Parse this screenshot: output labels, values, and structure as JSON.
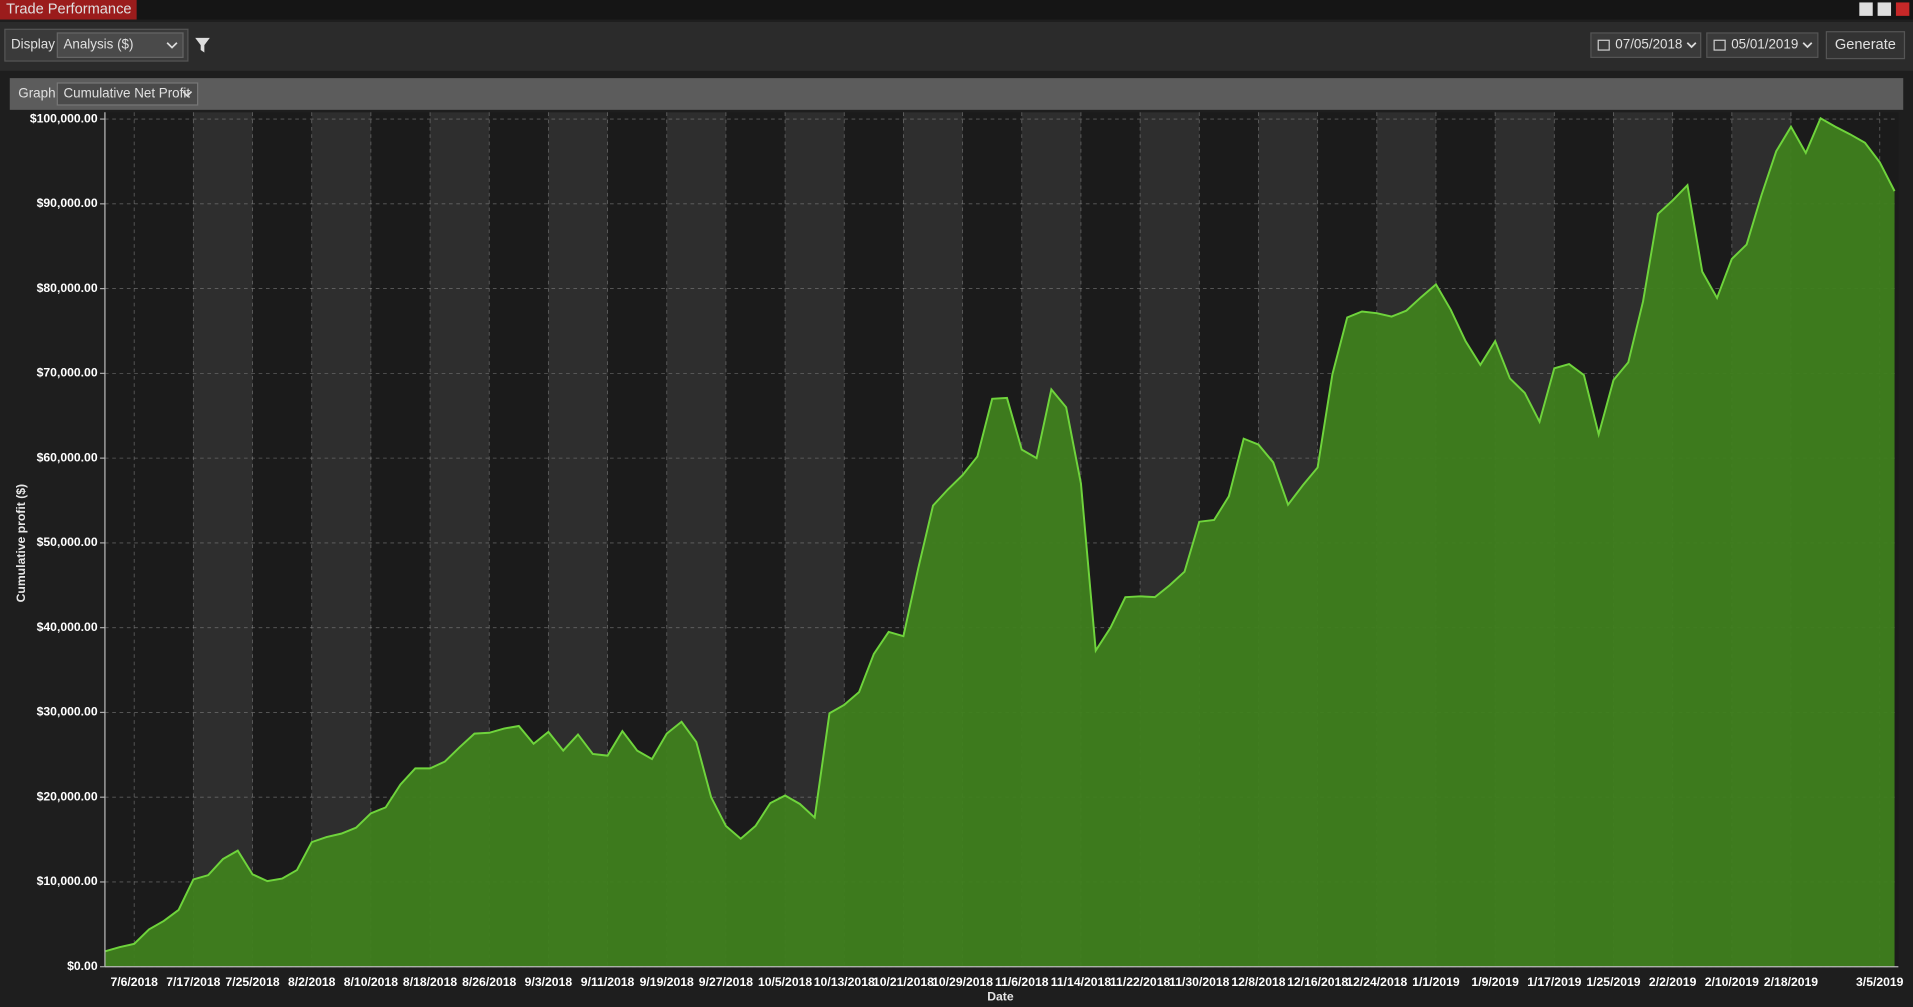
{
  "window": {
    "title": "Trade Performance"
  },
  "toolbar": {
    "display_label": "Display",
    "display_value": "Analysis ($)",
    "start_date": "07/05/2018",
    "end_date": "05/01/2019",
    "generate": "Generate"
  },
  "graph_panel": {
    "label": "Graph",
    "value": "Cumulative Net Profit"
  },
  "chart_data": {
    "type": "area",
    "x_label": "Date",
    "y_label": "Cumulative profit ($)",
    "color": "#3f801e",
    "line_color": "#6fd43c",
    "grid": true,
    "ylim": [
      0,
      100800
    ],
    "yticks": [
      {
        "value": 0,
        "label": "$0.00"
      },
      {
        "value": 10000,
        "label": "$10,000.00"
      },
      {
        "value": 20000,
        "label": "$20,000.00"
      },
      {
        "value": 30000,
        "label": "$30,000.00"
      },
      {
        "value": 40000,
        "label": "$40,000.00"
      },
      {
        "value": 50000,
        "label": "$50,000.00"
      },
      {
        "value": 60000,
        "label": "$60,000.00"
      },
      {
        "value": 70000,
        "label": "$70,000.00"
      },
      {
        "value": 80000,
        "label": "$80,000.00"
      },
      {
        "value": 90000,
        "label": "$90,000.00"
      },
      {
        "value": 100000,
        "label": "$100,000.00"
      }
    ],
    "categories": [
      null,
      null,
      "7/6/2018",
      null,
      null,
      null,
      "7/17/2018",
      null,
      null,
      null,
      "7/25/2018",
      null,
      null,
      null,
      "8/2/2018",
      null,
      null,
      null,
      "8/10/2018",
      null,
      null,
      null,
      "8/18/2018",
      null,
      null,
      null,
      "8/26/2018",
      null,
      null,
      null,
      "9/3/2018",
      null,
      null,
      null,
      "9/11/2018",
      null,
      null,
      null,
      "9/19/2018",
      null,
      null,
      null,
      "9/27/2018",
      null,
      null,
      null,
      "10/5/2018",
      null,
      null,
      null,
      "10/13/2018",
      null,
      null,
      null,
      "10/21/2018",
      null,
      null,
      null,
      "10/29/2018",
      null,
      null,
      null,
      "11/6/2018",
      null,
      null,
      null,
      "11/14/2018",
      null,
      null,
      null,
      "11/22/2018",
      null,
      null,
      null,
      "11/30/2018",
      null,
      null,
      null,
      "12/8/2018",
      null,
      null,
      null,
      "12/16/2018",
      null,
      null,
      null,
      "12/24/2018",
      null,
      null,
      null,
      "1/1/2019",
      null,
      null,
      null,
      "1/9/2019",
      null,
      null,
      null,
      "1/17/2019",
      null,
      null,
      null,
      "1/25/2019",
      null,
      null,
      null,
      "2/2/2019",
      null,
      null,
      null,
      "2/10/2019",
      null,
      null,
      null,
      "2/18/2019",
      null,
      null,
      null,
      null,
      null,
      "3/5/2019",
      null
    ],
    "values": [
      1800,
      2300,
      2700,
      4400,
      5400,
      6700,
      10300,
      10800,
      12700,
      13700,
      10900,
      10100,
      10400,
      11400,
      14700,
      15300,
      15700,
      16400,
      18100,
      18800,
      21500,
      23400,
      23400,
      24200,
      25900,
      27500,
      27600,
      28100,
      28400,
      26300,
      27700,
      25500,
      27400,
      25100,
      24900,
      27800,
      25500,
      24500,
      27500,
      28900,
      26500,
      20000,
      16600,
      15100,
      16600,
      19300,
      20200,
      19200,
      17600,
      29900,
      30900,
      32400,
      36900,
      39500,
      39000,
      47000,
      54400,
      56300,
      58000,
      60200,
      67000,
      67100,
      61000,
      60000,
      68100,
      66000,
      57000,
      37300,
      40000,
      43600,
      43700,
      43600,
      45000,
      46600,
      52500,
      52700,
      55500,
      62300,
      61600,
      59500,
      54500,
      56800,
      58900,
      69900,
      76600,
      77300,
      77100,
      76700,
      77400,
      79000,
      80500,
      77500,
      73800,
      71000,
      73800,
      69400,
      67700,
      64300,
      70600,
      71100,
      69800,
      62800,
      69200,
      71300,
      78500,
      88800,
      90400,
      92200,
      82000,
      78900,
      83500,
      85200,
      91000,
      96200,
      99100,
      96000,
      100100,
      99100,
      98200,
      97200,
      94900,
      91500
    ]
  }
}
